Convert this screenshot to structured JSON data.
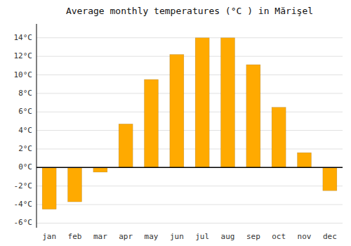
{
  "chart_data": {
    "type": "bar",
    "title": "Average monthly temperatures (°C ) in Mărişel",
    "categories": [
      "jan",
      "feb",
      "mar",
      "apr",
      "may",
      "jun",
      "jul",
      "aug",
      "sep",
      "oct",
      "nov",
      "dec"
    ],
    "values": [
      -4.5,
      -3.7,
      -0.5,
      4.7,
      9.5,
      12.2,
      14.0,
      14.0,
      11.1,
      6.5,
      1.6,
      -2.5
    ],
    "color": "#FFAA00",
    "ylim": [
      -6.5,
      15.5
    ],
    "yticks": [
      {
        "value": -6,
        "label": "-6°C"
      },
      {
        "value": -4,
        "label": "-4°C"
      },
      {
        "value": -2,
        "label": "-2°C"
      },
      {
        "value": 0,
        "label": "0°C"
      },
      {
        "value": 2,
        "label": "2°C"
      },
      {
        "value": 4,
        "label": "4°C"
      },
      {
        "value": 6,
        "label": "6°C"
      },
      {
        "value": 8,
        "label": "8°C"
      },
      {
        "value": 10,
        "label": "10°C"
      },
      {
        "value": 12,
        "label": "12°C"
      },
      {
        "value": 14,
        "label": "14°C"
      }
    ],
    "grid": true
  }
}
